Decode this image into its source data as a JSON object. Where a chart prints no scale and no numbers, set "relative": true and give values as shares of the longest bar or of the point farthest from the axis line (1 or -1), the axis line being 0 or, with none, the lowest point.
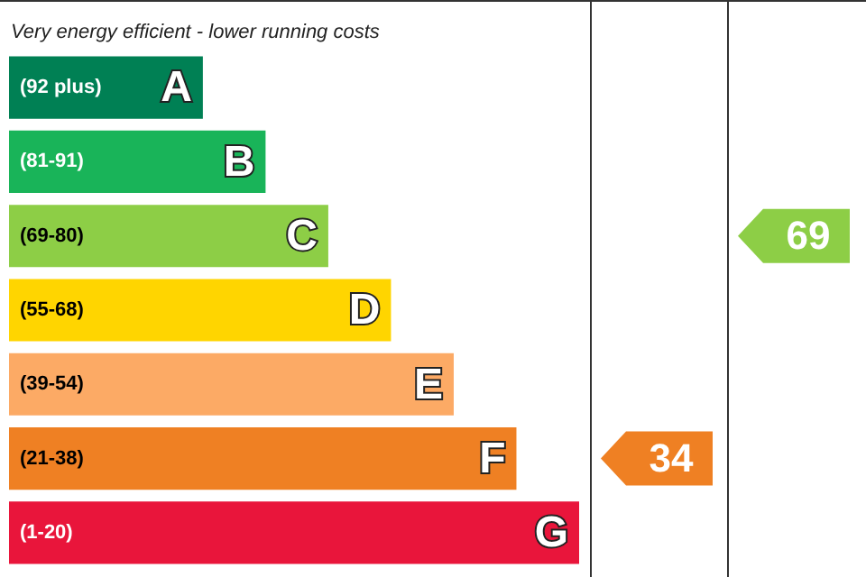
{
  "chart_data": {
    "type": "bar",
    "orientation": "horizontal",
    "relative": true,
    "title": "Very energy efficient - lower running costs",
    "categories": [
      "(92 plus)",
      "(81-91)",
      "(69-80)",
      "(55-68)",
      "(39-54)",
      "(21-38)",
      "(1-20)"
    ],
    "values": [
      0.34,
      0.45,
      0.56,
      0.67,
      0.78,
      0.89,
      1
    ],
    "colors": [
      "#008054",
      "#19b459",
      "#8dce46",
      "#ffd500",
      "#fcaa65",
      "#ef8023",
      "#e9153b"
    ],
    "annotations": [
      "A",
      "B",
      "C",
      "D",
      "E",
      "F",
      "G",
      "34",
      "69"
    ],
    "legend": false
  }
}
